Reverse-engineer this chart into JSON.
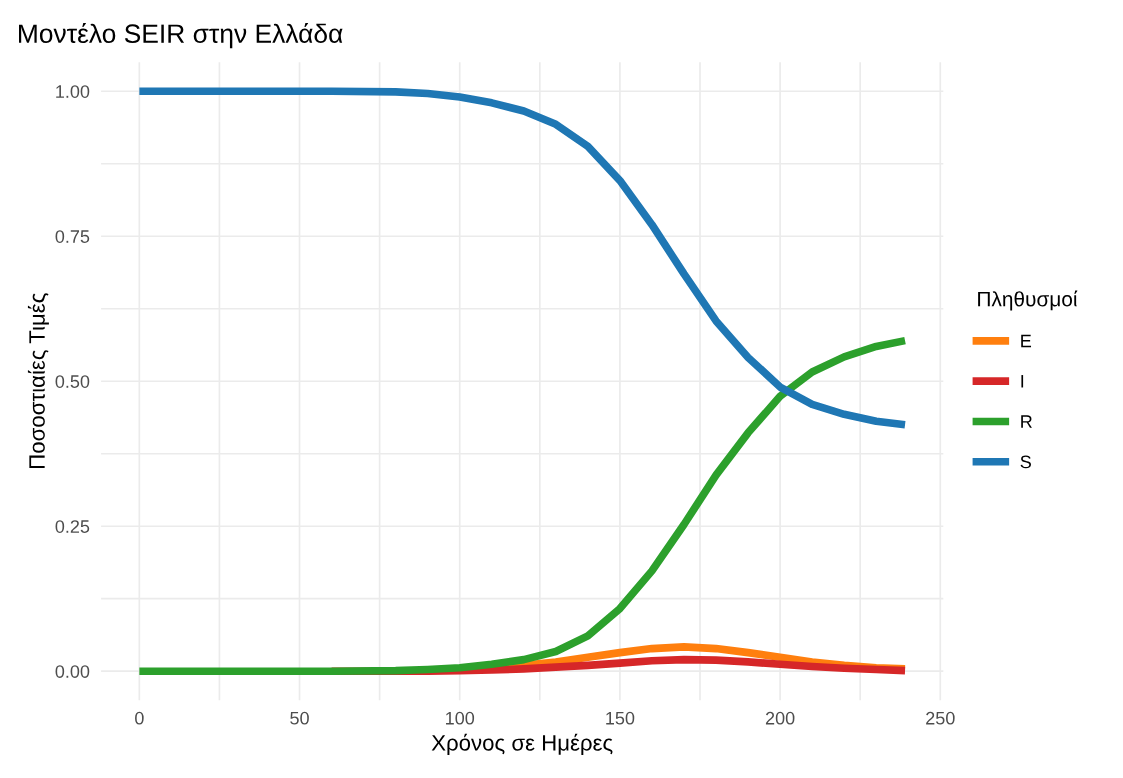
{
  "chart_data": {
    "type": "line",
    "title": "Μοντέλο SEIR στην Ελλάδα",
    "xlabel": "Χρόνος σε Ημέρες",
    "ylabel": "Ποσοστιαίες Τιμές",
    "legend_title": "Πληθυσμοί",
    "legend": "right",
    "grid": true,
    "line_style": "solid",
    "marker": "none",
    "x": [
      0,
      20,
      40,
      60,
      80,
      90,
      100,
      110,
      120,
      130,
      140,
      150,
      160,
      170,
      180,
      190,
      200,
      210,
      220,
      230,
      239
    ],
    "xlim": [
      -11.95,
      250.95
    ],
    "ylim": [
      -0.05,
      1.05
    ],
    "xticks": [
      0,
      {
        "value": 25,
        "label": null
      },
      50,
      {
        "value": 75,
        "label": null
      },
      100,
      {
        "value": 125,
        "label": null
      },
      150,
      {
        "value": 175,
        "label": null
      },
      200,
      {
        "value": 225,
        "label": null
      },
      250
    ],
    "yticks": [
      {
        "value": 0,
        "label": "0.00"
      },
      {
        "value": 0.125,
        "label": null
      },
      {
        "value": 0.25,
        "label": "0.25"
      },
      {
        "value": 0.375,
        "label": null
      },
      {
        "value": 0.5,
        "label": "0.50"
      },
      {
        "value": 0.625,
        "label": null
      },
      {
        "value": 0.75,
        "label": "0.75"
      },
      {
        "value": 0.875,
        "label": null
      },
      {
        "value": 1,
        "label": "1.00"
      }
    ],
    "series": [
      {
        "name": "E",
        "color": "#ff7f0e",
        "values": [
          null,
          null,
          null,
          null,
          null,
          null,
          null,
          0.006,
          0.01,
          0.016,
          0.024,
          0.032,
          0.039,
          0.042,
          0.039,
          0.032,
          0.024,
          0.016,
          0.01,
          0.006,
          0.004
        ]
      },
      {
        "name": "I",
        "color": "#d62728",
        "values": [
          null,
          null,
          null,
          0,
          0,
          0,
          0.001,
          0.002,
          0.004,
          0.007,
          0.01,
          0.014,
          0.018,
          0.02,
          0.019,
          0.016,
          0.012,
          0.008,
          0.005,
          0.003,
          0.001
        ]
      },
      {
        "name": "R",
        "color": "#2ca02c",
        "values": [
          0,
          0,
          0,
          0,
          0.001,
          0.003,
          0.006,
          0.012,
          0.02,
          0.034,
          0.061,
          0.108,
          0.173,
          0.253,
          0.338,
          0.411,
          0.474,
          0.516,
          0.542,
          0.56,
          0.57
        ]
      },
      {
        "name": "S",
        "color": "#1f77b4",
        "values": [
          1,
          1,
          1,
          1,
          0.999,
          0.996,
          0.99,
          0.98,
          0.966,
          0.943,
          0.905,
          0.846,
          0.77,
          0.685,
          0.604,
          0.541,
          0.49,
          0.46,
          0.443,
          0.431,
          0.425
        ]
      }
    ]
  }
}
